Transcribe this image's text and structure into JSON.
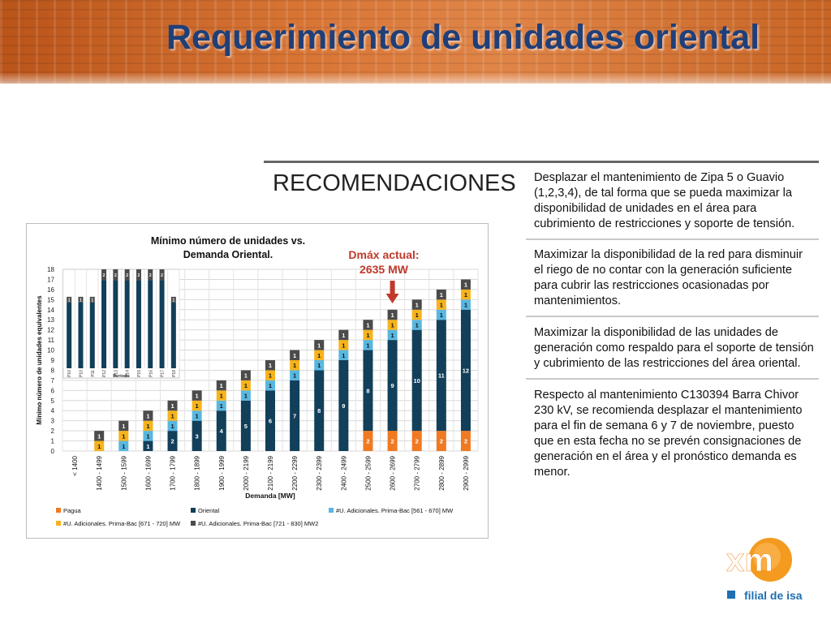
{
  "header": {
    "title": "Requerimiento de unidades oriental"
  },
  "recommendations": {
    "heading": "RECOMENDACIONES",
    "items": [
      "Desplazar el mantenimiento de Zipa 5 o Guavio (1,2,3,4), de tal forma que se pueda maximizar la disponibilidad de unidades en el área para cubrimiento de restricciones y soporte de tensión.",
      "Maximizar la disponibilidad de la red para disminuir el riego de no contar con la generación suficiente para cubrir las restricciones ocasionadas por mantenimientos.",
      "Maximizar la disponibilidad de las unidades de generación como respaldo para el soporte de tensión y cubrimiento de las restricciones del área oriental.",
      "Respecto al mantenimiento C130394 Barra Chivor 230 kV, se recomienda desplazar el mantenimiento para el fin de semana 6 y 7 de noviembre,  puesto que en esta fecha no se prevén consignaciones de generación en el área y el pronóstico demanda es menor."
    ]
  },
  "logo": {
    "brand": "xm",
    "tagline": "filial de isa"
  },
  "chart_data": [
    {
      "type": "bar",
      "stacked": true,
      "title": "Mínimo número de unidades vs. Demanda Oriental.",
      "xlabel": "Demanda [MW]",
      "ylabel": "Mínimo número de unidades equivalentes",
      "ylim": [
        0,
        18
      ],
      "yticks": [
        0,
        1,
        2,
        3,
        4,
        5,
        6,
        7,
        8,
        9,
        10,
        11,
        12,
        13,
        14,
        15,
        16,
        17,
        18
      ],
      "grid": true,
      "legend_position": "bottom",
      "annotation": {
        "text_line1": "Dmáx actual:",
        "text_line2": "2635 MW",
        "category": "2600 - 2699",
        "color": "#c0392b"
      },
      "categories": [
        "< 1400",
        "1400 - 1499",
        "1500 - 1599",
        "1600 - 1699",
        "1700 - 1799",
        "1800 - 1899",
        "1900 - 1999",
        "2000 - 2199",
        "2100 - 2199",
        "2200 - 2299",
        "2300 - 2399",
        "2400 - 2499",
        "2500 - 2599",
        "2600 - 2699",
        "2700 - 2799",
        "2800 - 2899",
        "2900 - 2999"
      ],
      "series": [
        {
          "name": "Pagua",
          "color": "#f07a22",
          "values": [
            0,
            0,
            0,
            0,
            0,
            0,
            0,
            0,
            0,
            0,
            0,
            0,
            2,
            2,
            2,
            2,
            2
          ]
        },
        {
          "name": "Oriental",
          "color": "#123f5a",
          "values": [
            0,
            0,
            0,
            1,
            2,
            3,
            4,
            5,
            6,
            7,
            8,
            9,
            8,
            9,
            10,
            11,
            12
          ]
        },
        {
          "name": "#U. Adicionales. Prima-Bac [561 - 670] MW",
          "color": "#58b7e0",
          "values": [
            0,
            0,
            1,
            1,
            1,
            1,
            1,
            1,
            1,
            1,
            1,
            1,
            1,
            1,
            1,
            1,
            1
          ]
        },
        {
          "name": "#U. Adicionales. Prima-Bac [671 - 720] MW",
          "color": "#f6b31c",
          "values": [
            0,
            1,
            1,
            1,
            1,
            1,
            1,
            1,
            1,
            1,
            1,
            1,
            1,
            1,
            1,
            1,
            1
          ]
        },
        {
          "name": "#U. Adicionales. Prima-Bac [721 - 830] MW2",
          "color": "#4b4b4b",
          "values": [
            0,
            1,
            1,
            1,
            1,
            1,
            1,
            1,
            1,
            1,
            1,
            1,
            1,
            1,
            1,
            1,
            1
          ]
        }
      ]
    },
    {
      "type": "bar",
      "stacked": true,
      "xlabel": "Periodo",
      "categories": [
        "P10",
        "P10",
        "P11",
        "P12",
        "P13",
        "P14",
        "P15",
        "P16",
        "P17",
        "P18"
      ],
      "series": [
        {
          "name": "Oriental",
          "color": "#123f5a",
          "values": [
            12,
            12,
            12,
            16,
            16,
            16,
            16,
            16,
            16,
            12
          ]
        },
        {
          "name": "#U. Adicionales. Prima-Bac [721 - 830] MW2",
          "color": "#4b4b4b",
          "values": [
            1,
            1,
            1,
            2,
            2,
            2,
            2,
            2,
            2,
            1
          ]
        }
      ]
    }
  ]
}
